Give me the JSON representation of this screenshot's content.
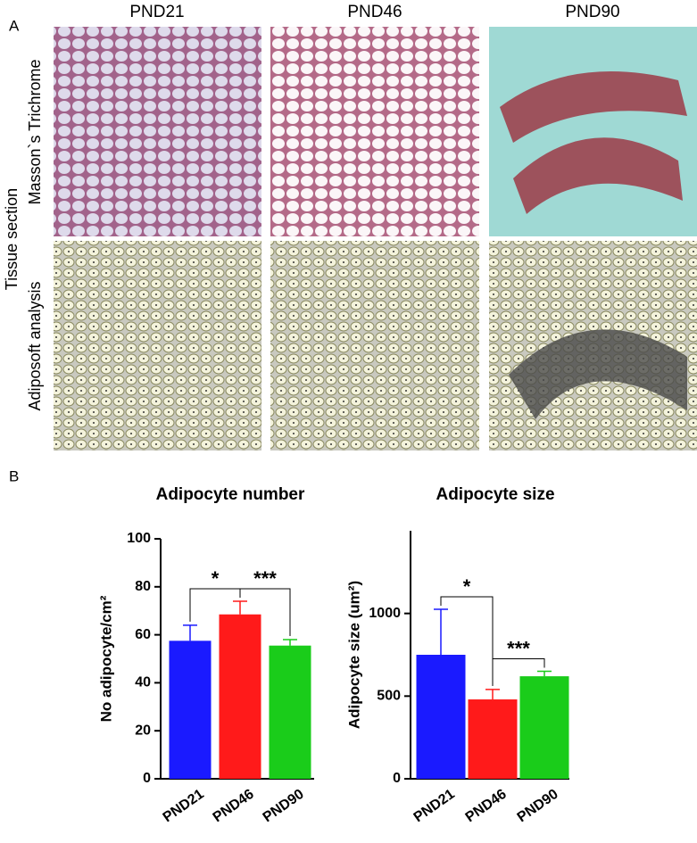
{
  "panel_a": {
    "label": "A",
    "columns": [
      "PND21",
      "PND46",
      "PND90"
    ],
    "rows": [
      "Masson`s Trichrome",
      "Adiposoft analysis"
    ],
    "row_group": "Tissue section"
  },
  "panel_b": {
    "label": "B"
  },
  "chart_data": [
    {
      "type": "bar",
      "title": "Adipocyte number",
      "y_label": "No adipocyte/cm²",
      "categories": [
        "PND21",
        "PND46",
        "PND90"
      ],
      "values": [
        57.5,
        68.5,
        55.5
      ],
      "errors": [
        6.5,
        5.5,
        2.5
      ],
      "colors": [
        "#1a1aff",
        "#ff1a1a",
        "#1acc1a"
      ],
      "ylim": [
        0,
        100
      ],
      "yticks": [
        0,
        20,
        40,
        60,
        80,
        100
      ],
      "annotations": [
        "*",
        "***"
      ]
    },
    {
      "type": "bar",
      "title": "Adipocyte size",
      "y_label": "Adipocyte size (um²)",
      "categories": [
        "PND21",
        "PND46",
        "PND90"
      ],
      "values": [
        750,
        480,
        620
      ],
      "errors": [
        275,
        60,
        30
      ],
      "colors": [
        "#1a1aff",
        "#ff1a1a",
        "#1acc1a"
      ],
      "ylim": [
        0,
        1500
      ],
      "yticks": [
        0,
        500,
        1000
      ],
      "annotations": [
        "*",
        "***"
      ]
    }
  ]
}
